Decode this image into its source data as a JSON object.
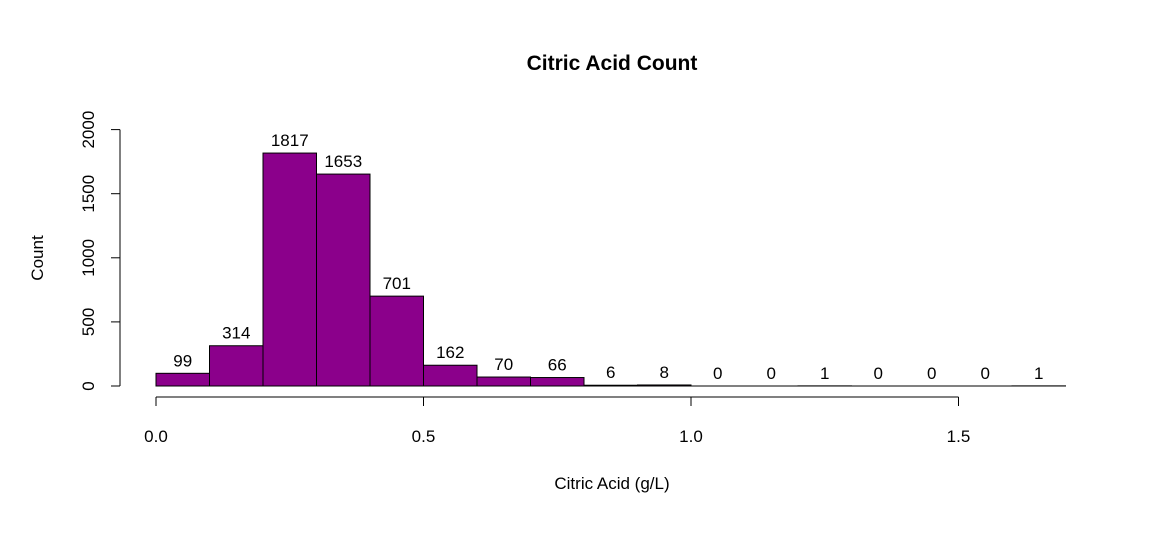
{
  "chart_data": {
    "type": "bar",
    "title": "Citric Acid Count",
    "xlabel": "Citric Acid (g/L)",
    "ylabel": "Count",
    "bin_edges": [
      0.0,
      0.1,
      0.2,
      0.3,
      0.4,
      0.5,
      0.6,
      0.7,
      0.8,
      0.9,
      1.0,
      1.1,
      1.2,
      1.3,
      1.4,
      1.5,
      1.6,
      1.7
    ],
    "values": [
      99,
      314,
      1817,
      1653,
      701,
      162,
      70,
      66,
      6,
      8,
      0,
      0,
      1,
      0,
      0,
      0,
      1
    ],
    "data_labels": [
      "99",
      "314",
      "1817",
      "1653",
      "701",
      "162",
      "70",
      "66",
      "6",
      "8",
      "0",
      "0",
      "1",
      "0",
      "0",
      "0",
      "1"
    ],
    "xticks": [
      0.0,
      0.5,
      1.0,
      1.5
    ],
    "xtick_labels": [
      "0.0",
      "0.5",
      "1.0",
      "1.5"
    ],
    "yticks": [
      0,
      500,
      1000,
      1500,
      2000
    ],
    "ytick_labels": [
      "0",
      "500",
      "1000",
      "1500",
      "2000"
    ],
    "xlim": [
      0,
      1.7
    ],
    "ylim": [
      0,
      2000
    ],
    "bar_color": "#8B008B",
    "grid": false,
    "legend": "none"
  }
}
